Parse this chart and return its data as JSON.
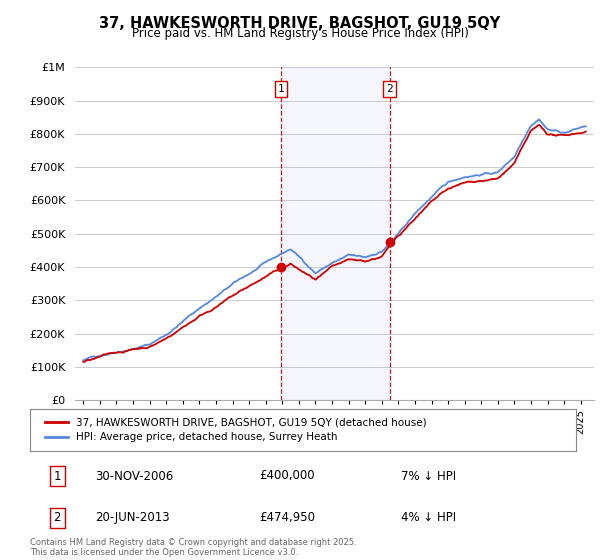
{
  "title": "37, HAWKESWORTH DRIVE, BAGSHOT, GU19 5QY",
  "subtitle": "Price paid vs. HM Land Registry's House Price Index (HPI)",
  "ylabel_ticks": [
    "£0",
    "£100K",
    "£200K",
    "£300K",
    "£400K",
    "£500K",
    "£600K",
    "£700K",
    "£800K",
    "£900K",
    "£1M"
  ],
  "ytick_values": [
    0,
    100000,
    200000,
    300000,
    400000,
    500000,
    600000,
    700000,
    800000,
    900000,
    1000000
  ],
  "ylim": [
    0,
    1000000
  ],
  "xlim_start": 1994.5,
  "xlim_end": 2025.8,
  "sale1_date": 2006.92,
  "sale1_price": 400000,
  "sale1_label": "1",
  "sale2_date": 2013.47,
  "sale2_price": 474950,
  "sale2_label": "2",
  "bg_color": "#ffffff",
  "plot_bg_color": "#ffffff",
  "grid_color": "#cccccc",
  "hpi_line_color": "#5588dd",
  "price_line_color": "#cc0000",
  "sale_marker_color": "#cc0000",
  "vline_color": "#cc0000",
  "legend_line1": "37, HAWKESWORTH DRIVE, BAGSHOT, GU19 5QY (detached house)",
  "legend_line2": "HPI: Average price, detached house, Surrey Heath",
  "table_row1": [
    "1",
    "30-NOV-2006",
    "£400,000",
    "7% ↓ HPI"
  ],
  "table_row2": [
    "2",
    "20-JUN-2013",
    "£474,950",
    "4% ↓ HPI"
  ],
  "footer": "Contains HM Land Registry data © Crown copyright and database right 2025.\nThis data is licensed under the Open Government Licence v3.0."
}
